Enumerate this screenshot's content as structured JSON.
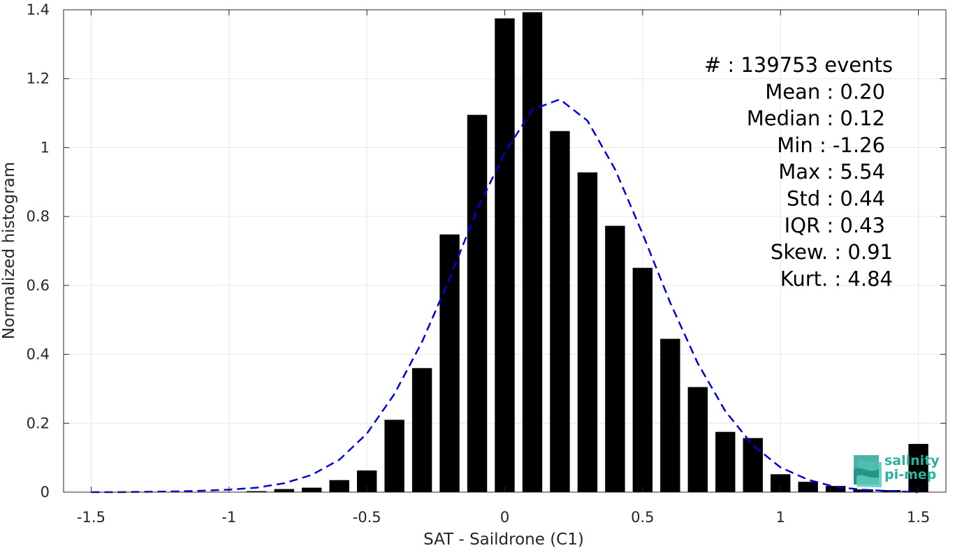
{
  "chart_data": {
    "type": "bar",
    "title": "",
    "xlabel": "SAT - Saildrone (C1)",
    "ylabel": "Normalized histogram",
    "xlim": [
      -1.6,
      1.6
    ],
    "ylim": [
      0,
      1.4
    ],
    "xticks": [
      -1.5,
      -1,
      -0.5,
      0,
      0.5,
      1,
      1.5
    ],
    "xtick_labels": [
      "-1.5",
      "-1",
      "-0.5",
      "0",
      "0.5",
      "1",
      "1.5"
    ],
    "yticks": [
      0,
      0.2,
      0.4,
      0.6,
      0.8,
      1,
      1.2,
      1.4
    ],
    "ytick_labels": [
      "0",
      "0.2",
      "0.4",
      "0.6",
      "0.8",
      "1",
      "1.2",
      "1.4"
    ],
    "grid": true,
    "bar_color": "#000000",
    "x": [
      -1.5,
      -1.4,
      -1.3,
      -1.2,
      -1.1,
      -1.0,
      -0.9,
      -0.8,
      -0.7,
      -0.6,
      -0.5,
      -0.4,
      -0.3,
      -0.2,
      -0.1,
      0.0,
      0.1,
      0.2,
      0.3,
      0.4,
      0.5,
      0.6,
      0.7,
      0.8,
      0.9,
      1.0,
      1.1,
      1.2,
      1.3,
      1.4,
      1.5
    ],
    "values": [
      0.0,
      0.0,
      0.0,
      0.0,
      0.0,
      0.001,
      0.003,
      0.009,
      0.013,
      0.035,
      0.063,
      0.21,
      0.36,
      0.748,
      1.095,
      1.375,
      1.393,
      1.048,
      0.928,
      0.773,
      0.651,
      0.445,
      0.305,
      0.175,
      0.157,
      0.052,
      0.03,
      0.018,
      0.008,
      0.006,
      0.14
    ],
    "fit_curve": {
      "color": "#0000dd",
      "style": "dashed",
      "x": [
        -1.5,
        -1.4,
        -1.3,
        -1.2,
        -1.1,
        -1.0,
        -0.9,
        -0.8,
        -0.7,
        -0.6,
        -0.5,
        -0.4,
        -0.3,
        -0.2,
        -0.1,
        0.0,
        0.1,
        0.2,
        0.3,
        0.4,
        0.5,
        0.6,
        0.7,
        0.8,
        0.9,
        1.0,
        1.1,
        1.2,
        1.3,
        1.4,
        1.5
      ],
      "y": [
        0.0,
        0.0,
        0.001,
        0.002,
        0.004,
        0.007,
        0.013,
        0.026,
        0.05,
        0.094,
        0.17,
        0.285,
        0.436,
        0.62,
        0.82,
        0.985,
        1.11,
        1.14,
        1.078,
        0.937,
        0.75,
        0.55,
        0.374,
        0.235,
        0.136,
        0.072,
        0.036,
        0.015,
        0.007,
        0.003,
        0.0
      ]
    }
  },
  "stats": [
    {
      "label": "#",
      "sep": ": ",
      "value": "139753 events"
    },
    {
      "label": "Mean",
      "sep": " : ",
      "value": "0.20"
    },
    {
      "label": "Median",
      "sep": " : ",
      "value": "0.12"
    },
    {
      "label": "Min",
      "sep": " : ",
      "value": "-1.26"
    },
    {
      "label": "Max",
      "sep": " : ",
      "value": "5.54"
    },
    {
      "label": "Std",
      "sep": " : ",
      "value": "0.44"
    },
    {
      "label": "IQR",
      "sep": " : ",
      "value": "0.43"
    },
    {
      "label": "Skew.",
      "sep": " : ",
      "value": "0.91"
    },
    {
      "label": "Kurt.",
      "sep": " : ",
      "value": "4.84"
    }
  ],
  "logo": {
    "name": "salinity-pi-mep-logo",
    "line1": "salinity",
    "line2": "pi-mep",
    "color": "#25b2a0"
  }
}
